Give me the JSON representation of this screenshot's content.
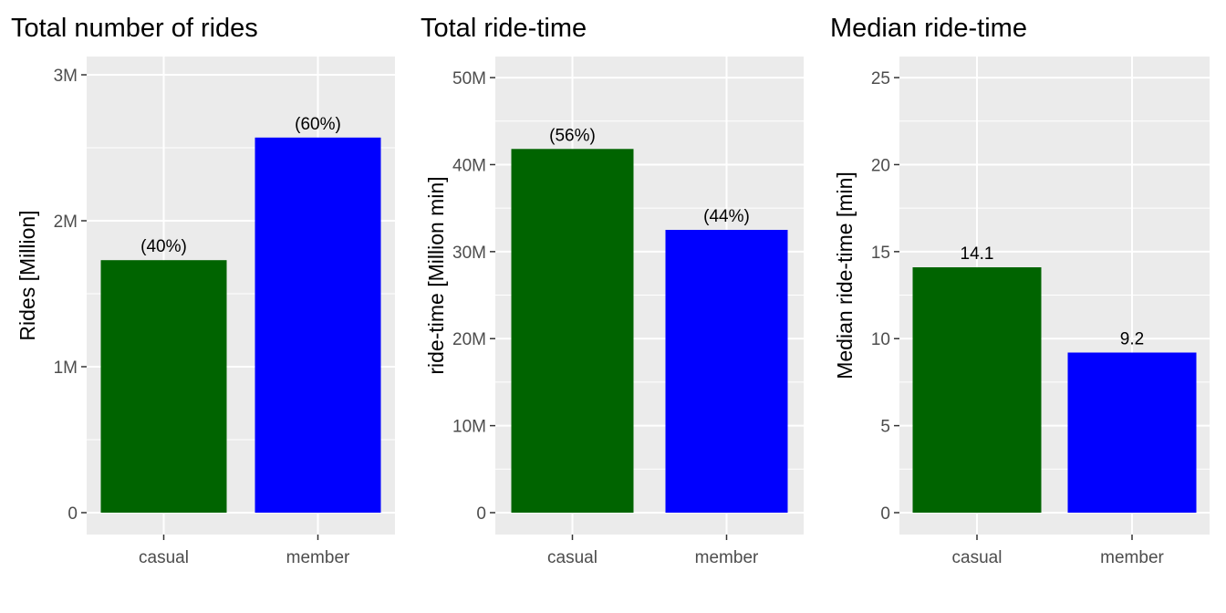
{
  "chart_data": [
    {
      "type": "bar",
      "title": "Total number of rides",
      "xlabel": "",
      "ylabel": "Rides [Million]",
      "categories": [
        "casual",
        "member"
      ],
      "values": [
        1.73,
        2.57
      ],
      "bar_labels": [
        "(40%)",
        "(60%)"
      ],
      "bar_colors": [
        "#006400",
        "#0000FF"
      ],
      "ylim": [
        0,
        3.1
      ],
      "yticks": [
        0,
        1,
        2,
        3
      ],
      "ytick_labels": [
        "0",
        "1M",
        "2M",
        "3M"
      ],
      "grid": true,
      "legend": "none"
    },
    {
      "type": "bar",
      "title": "Total ride-time",
      "xlabel": "",
      "ylabel": "ride-time [Million min]",
      "categories": [
        "casual",
        "member"
      ],
      "values": [
        41.8,
        32.5
      ],
      "bar_labels": [
        "(56%)",
        "(44%)"
      ],
      "bar_colors": [
        "#006400",
        "#0000FF"
      ],
      "ylim": [
        0,
        52
      ],
      "yticks": [
        0,
        10,
        20,
        30,
        40,
        50
      ],
      "ytick_labels": [
        "0",
        "10M",
        "20M",
        "30M",
        "40M",
        "50M"
      ],
      "grid": true,
      "legend": "none"
    },
    {
      "type": "bar",
      "title": "Median ride-time",
      "xlabel": "",
      "ylabel": "Median ride-time [min]",
      "categories": [
        "casual",
        "member"
      ],
      "values": [
        14.1,
        9.2
      ],
      "bar_labels": [
        "14.1",
        "9.2"
      ],
      "bar_colors": [
        "#006400",
        "#0000FF"
      ],
      "ylim": [
        0,
        26
      ],
      "yticks": [
        0,
        5,
        10,
        15,
        20,
        25
      ],
      "ytick_labels": [
        "0",
        "5",
        "10",
        "15",
        "20",
        "25"
      ],
      "grid": true,
      "legend": "none"
    }
  ]
}
